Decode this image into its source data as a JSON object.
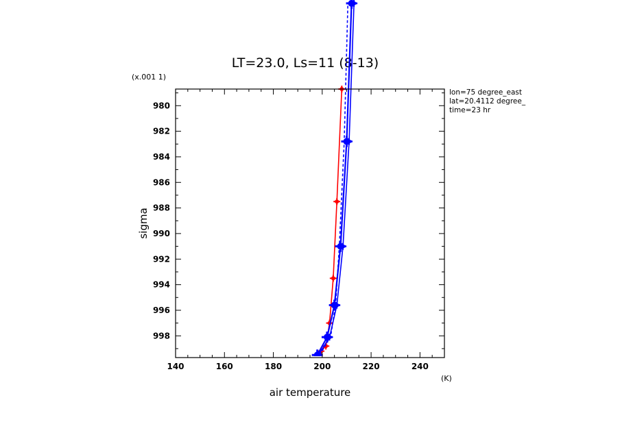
{
  "chart_data": {
    "type": "line",
    "title": "LT=23.0, Ls=11 (8-13)",
    "xlabel": "air temperature",
    "ylabel": "sigma",
    "x_unit": "(K)",
    "y_multiplier": "(x.001 1)",
    "xlim": [
      140,
      250
    ],
    "ylim": [
      978.7,
      999.7
    ],
    "y_inverted": true,
    "grid": false,
    "x_ticks": [
      140,
      160,
      180,
      200,
      220,
      240
    ],
    "y_ticks": [
      980,
      982,
      984,
      986,
      988,
      990,
      992,
      994,
      996,
      998
    ],
    "info_lines": [
      "lon=75 degree_east",
      "lat=20.4112 degree_",
      "time=23 hr"
    ],
    "series": [
      {
        "color": "#ff0000",
        "style": "solid",
        "marker": "small",
        "points": [
          [
            197.5,
            999.7
          ],
          [
            199.5,
            999.2
          ],
          [
            201.5,
            998.8
          ],
          [
            203,
            997.0
          ],
          [
            204.5,
            993.5
          ],
          [
            206,
            987.5
          ],
          [
            208,
            978.7
          ]
        ]
      },
      {
        "color": "#0000ff",
        "style": "solid",
        "marker": "large",
        "points": [
          [
            198,
            999.5
          ],
          [
            202,
            998.1
          ],
          [
            205,
            995.6
          ],
          [
            207.5,
            991.0
          ],
          [
            210,
            982.8
          ],
          [
            212,
            972.0
          ]
        ]
      },
      {
        "color": "#0000ff",
        "style": "solid",
        "marker": "small",
        "points": [
          [
            198.5,
            999.5
          ],
          [
            203,
            998.1
          ],
          [
            206,
            995.6
          ],
          [
            208.5,
            991.0
          ],
          [
            211,
            982.8
          ],
          [
            213,
            972.0
          ]
        ]
      },
      {
        "color": "#0000ff",
        "style": "dashed",
        "marker": "none",
        "points": [
          [
            199,
            999.5
          ],
          [
            203.5,
            998.0
          ],
          [
            205.5,
            995.5
          ],
          [
            207,
            991.0
          ],
          [
            209,
            982.8
          ],
          [
            210.5,
            972.0
          ]
        ]
      }
    ]
  }
}
